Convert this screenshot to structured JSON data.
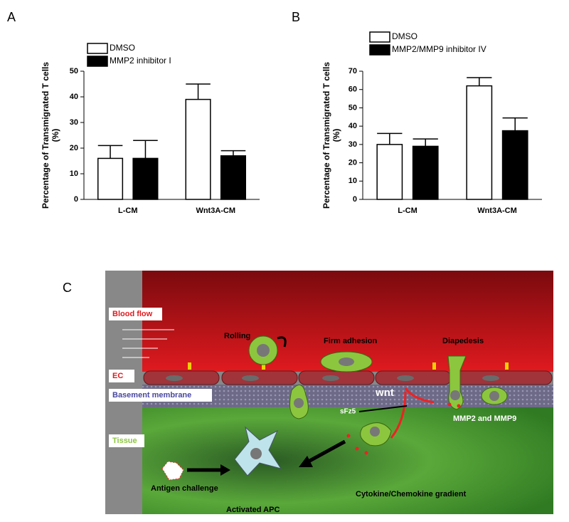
{
  "chart_data": [
    {
      "type": "bar",
      "panel": "A",
      "ylabel": [
        "Percentage of Transmigrated T cells",
        "(%)"
      ],
      "categories": [
        "L-CM",
        "Wnt3A-CM"
      ],
      "series": [
        {
          "name": "DMSO",
          "color": "#ffffff",
          "values": [
            16,
            39
          ],
          "errors": [
            5,
            6
          ]
        },
        {
          "name": "MMP2 inhibitor I",
          "color": "#000000",
          "values": [
            16,
            17
          ],
          "errors": [
            7,
            2
          ]
        }
      ],
      "ylim": [
        0,
        50
      ],
      "yticks": [
        0,
        10,
        20,
        30,
        40,
        50
      ]
    },
    {
      "type": "bar",
      "panel": "B",
      "ylabel": [
        "Percentage of Transmigrated T cells",
        "(%)"
      ],
      "categories": [
        "L-CM",
        "Wnt3A-CM"
      ],
      "series": [
        {
          "name": "DMSO",
          "color": "#ffffff",
          "values": [
            30,
            62
          ],
          "errors": [
            6,
            4.5
          ]
        },
        {
          "name": "MMP2/MMP9 inhibitor IV",
          "color": "#000000",
          "values": [
            29,
            37.5
          ],
          "errors": [
            4,
            7
          ]
        }
      ],
      "ylim": [
        0,
        70
      ],
      "yticks": [
        0,
        10,
        20,
        30,
        40,
        50,
        60,
        70
      ]
    }
  ],
  "diagram": {
    "panel": "C",
    "labels": {
      "blood_flow": "Blood flow",
      "rolling": "Rolling",
      "firm_adhesion": "Firm adhesion",
      "diapedesis": "Diapedesis",
      "ec": "EC",
      "basement_membrane": "Basement membrane",
      "wnt": "wnt",
      "sfz5": "sFz5",
      "mmp": "MMP2 and MMP9",
      "tissue": "Tissue",
      "antigen": "Antigen challenge",
      "apc": "Activated APC",
      "gradient": "Cytokine/Chemokine gradient"
    }
  }
}
